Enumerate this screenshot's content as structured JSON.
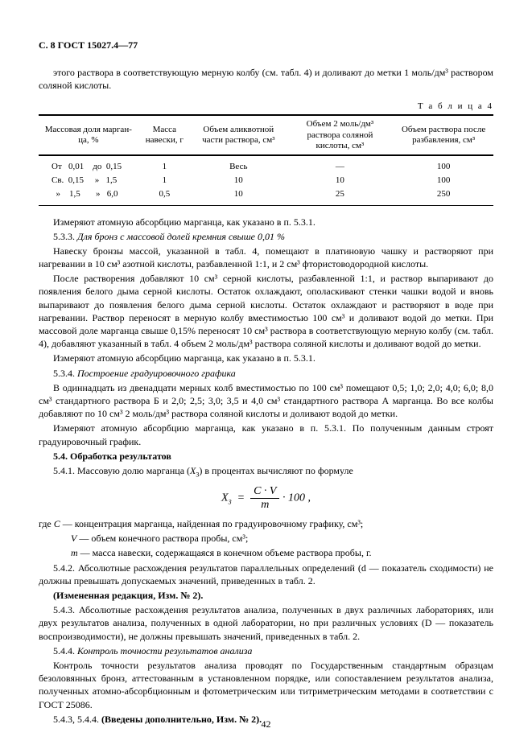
{
  "header": "С. 8 ГОСТ 15027.4—77",
  "intro": "этого раствора в соответствующую мерную колбу (см. табл. 4) и  доливают до метки 1 моль/дм³ раствором соляной кислоты.",
  "tableLabel": "Т а б л и ц а 4",
  "table": {
    "headers": [
      "Массовая доля марган-\nца, %",
      "Масса\nнавески, г",
      "Объем аликвотной\nчасти раствора, см³",
      "Объем 2 моль/дм³\nраствора соляной\nкислоты, см³",
      "Объем раствора после\nразбавления, см³"
    ],
    "rows": [
      [
        "От   0,01    до  0,15",
        "1",
        "Весь",
        "—",
        "100"
      ],
      [
        "Св.  0,15     »   1,5",
        "1",
        "10",
        "10",
        "100"
      ],
      [
        "  »    1,5       »   6,0",
        "0,5",
        "10",
        "25",
        "250"
      ]
    ]
  },
  "p1": "Измеряют атомную абсорбцию марганца, как указано в п. 5.3.1.",
  "p2a": "5.3.3. ",
  "p2b": "Для бронз с массовой долей кремния свыше 0,01 %",
  "p3": "Навеску бронзы массой, указанной в табл. 4, помещают в платиновую чашку и растворяют при нагревании в 10 см³ азотной кислоты, разбавленной 1:1, и 2 см³ фтористоводородной кислоты.",
  "p4": "После растворения добавляют 10 см³ серной кислоты, разбавленной 1:1, и раствор выпаривают до появления белого дыма серной кислоты. Остаток охлаждают, ополаскивают стенки чашки водой и вновь выпаривают до появления белого дыма серной кислоты. Остаток охлаждают и растворяют в воде при нагревании. Раствор переносят в мерную колбу вместимостью 100 см³ и доливают водой до метки. При массовой доле марганца свыше 0,15% переносят 10 см³ раствора в соответствующую мерную колбу (см. табл. 4), добавляют указанный в табл. 4 объем 2 моль/дм³ раствора соляной кислоты и доливают водой до метки.",
  "p5": "Измеряют атомную абсорбцию марганца, как указано в п. 5.3.1.",
  "p6a": "5.3.4. ",
  "p6b": "Построение градуировочного графика",
  "p7": "В одиннадцать из двенадцати мерных колб вместимостью по 100 см³ помещают 0,5; 1,0; 2,0; 4,0; 6,0; 8,0 см³ стандартного раствора Б и 2,0; 2,5; 3,0; 3,5 и 4,0 см³ стандартного раствора А марганца. Во все колбы добавляют по 10 см³ 2 моль/дм³ раствора соляной кислоты и доливают водой до метки.",
  "p8": "Измеряют атомную абсорбцию марганца, как указано в п. 5.3.1. По полученным данным строят градуировочный график.",
  "p9": "5.4. Обработка результатов",
  "p10a": "5.4.1. Массовую долю марганца (",
  "p10b": "X",
  "p10c": ") в процентах вычисляют по формуле",
  "formula": {
    "lhs": "X",
    "sub": "3",
    "num": "C · V",
    "den": "m",
    "tail": " · 100 ,"
  },
  "defs": {
    "d1a": "где ",
    "d1b": "C",
    "d1c": "  — концентрация марганца, найденная по градуировочному графику, см³;",
    "d2a": "V",
    "d2c": "  — объем конечного раствора пробы, см³;",
    "d3a": "m",
    "d3c": "  — масса навески, содержащаяся в конечном объеме раствора пробы, г."
  },
  "p11": "5.4.2. Абсолютные расхождения результатов параллельных определений (d — показатель сходимости) не должны превышать допускаемых значений, приведенных в табл. 2.",
  "p12": "(Измененная редакция, Изм. № 2).",
  "p13": "5.4.3. Абсолютные расхождения результатов анализа, полученных в двух различных лабораториях, или двух результатов анализа, полученных в одной лаборатории, но при различных условиях (D — показатель воспроизводимости), не должны превышать значений, приведенных в табл. 2.",
  "p14a": "5.4.4. ",
  "p14b": "Контроль точности результатов анализа",
  "p15": "Контроль точности результатов анализа проводят по Государственным стандартным образцам безоловянных бронз, аттестованным в установленном порядке, или сопоставлением результатов анализа, полученных атомно-абсорбционным и фотометрическим или титриметрическим методами в соответствии с ГОСТ 25086.",
  "p16a": "5.4.3, 5.4.4. ",
  "p16b": "(Введены дополнительно, Изм. № 2).",
  "pageNumber": "42"
}
